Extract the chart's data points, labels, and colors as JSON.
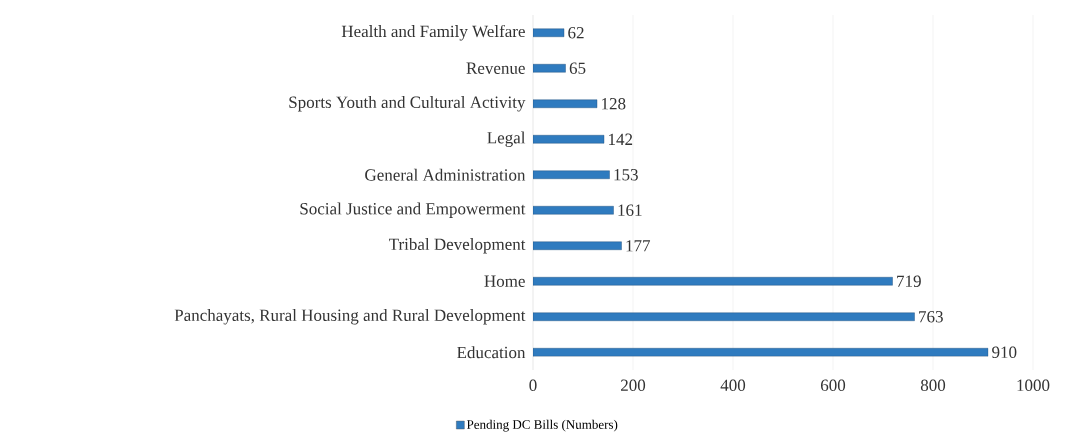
{
  "chart_data": {
    "type": "bar",
    "orientation": "horizontal",
    "categories": [
      "Health and Family Welfare",
      "Revenue",
      "Sports Youth and Cultural Activity",
      "Legal",
      "General Administration",
      "Social Justice and Empowerment",
      "Tribal Development",
      "Home",
      "Panchayats, Rural Housing and Rural Development",
      "Education"
    ],
    "series": [
      {
        "name": "Pending DC Bills (Numbers)",
        "color": "#2f7bbf",
        "values": [
          62,
          65,
          128,
          142,
          153,
          161,
          177,
          719,
          763,
          910
        ]
      }
    ],
    "xlim": [
      0,
      1000
    ],
    "xticks": [
      0,
      200,
      400,
      600,
      800,
      1000
    ],
    "grid": "x",
    "legend": "bottom",
    "data_labels": true
  }
}
